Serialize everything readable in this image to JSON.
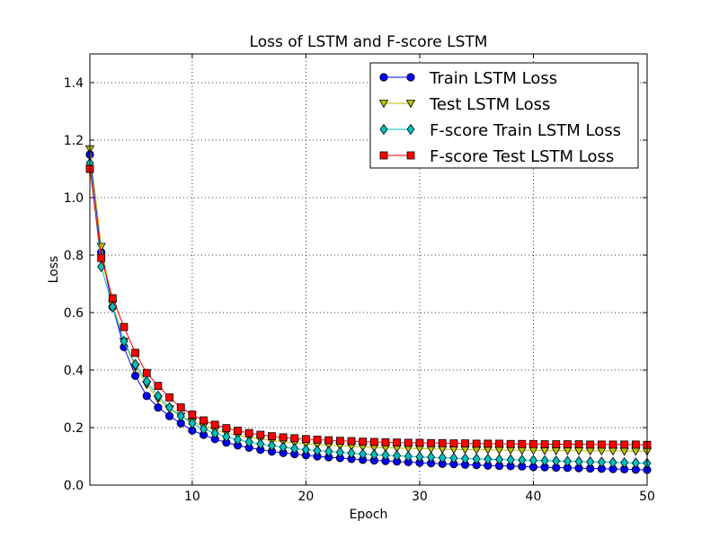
{
  "chart_data": {
    "type": "line",
    "title": "Loss of LSTM and F-score LSTM",
    "xlabel": "Epoch",
    "ylabel": "Loss",
    "xlim": [
      1,
      50
    ],
    "ylim": [
      0.0,
      1.5
    ],
    "xticks": [
      10,
      20,
      30,
      40,
      50
    ],
    "xtick_labels": [
      "10",
      "20",
      "30",
      "40",
      "50"
    ],
    "yticks": [
      0.0,
      0.2,
      0.4,
      0.6,
      0.8,
      1.0,
      1.2,
      1.4
    ],
    "ytick_labels": [
      "0.0",
      "0.2",
      "0.4",
      "0.6",
      "0.8",
      "1.0",
      "1.2",
      "1.4"
    ],
    "grid": true,
    "legend_position": "top-right",
    "x": [
      1,
      2,
      3,
      4,
      5,
      6,
      7,
      8,
      9,
      10,
      11,
      12,
      13,
      14,
      15,
      16,
      17,
      18,
      19,
      20,
      21,
      22,
      23,
      24,
      25,
      26,
      27,
      28,
      29,
      30,
      31,
      32,
      33,
      34,
      35,
      36,
      37,
      38,
      39,
      40,
      41,
      42,
      43,
      44,
      45,
      46,
      47,
      48,
      49,
      50
    ],
    "series": [
      {
        "name": "Train LSTM Loss",
        "color": "#0000ff",
        "marker": "circle",
        "values": [
          1.15,
          0.81,
          0.62,
          0.48,
          0.38,
          0.31,
          0.27,
          0.24,
          0.215,
          0.19,
          0.175,
          0.16,
          0.148,
          0.138,
          0.13,
          0.123,
          0.117,
          0.112,
          0.108,
          0.104,
          0.1,
          0.097,
          0.094,
          0.091,
          0.088,
          0.086,
          0.084,
          0.082,
          0.08,
          0.078,
          0.076,
          0.074,
          0.073,
          0.071,
          0.07,
          0.068,
          0.067,
          0.066,
          0.065,
          0.063,
          0.062,
          0.061,
          0.06,
          0.059,
          0.058,
          0.057,
          0.056,
          0.055,
          0.054,
          0.053
        ]
      },
      {
        "name": "Test LSTM Loss",
        "color": "#bfbf00",
        "marker": "triangle-down",
        "values": [
          1.17,
          0.83,
          0.63,
          0.5,
          0.41,
          0.35,
          0.3,
          0.265,
          0.24,
          0.22,
          0.205,
          0.192,
          0.182,
          0.173,
          0.166,
          0.16,
          0.155,
          0.151,
          0.147,
          0.144,
          0.141,
          0.139,
          0.137,
          0.135,
          0.133,
          0.131,
          0.13,
          0.129,
          0.128,
          0.127,
          0.126,
          0.125,
          0.124,
          0.124,
          0.123,
          0.123,
          0.122,
          0.122,
          0.121,
          0.121,
          0.12,
          0.12,
          0.12,
          0.119,
          0.119,
          0.119,
          0.119,
          0.118,
          0.118,
          0.118
        ]
      },
      {
        "name": "F-score Train LSTM Loss",
        "color": "#00bfbf",
        "marker": "diamond",
        "values": [
          1.12,
          0.76,
          0.62,
          0.5,
          0.42,
          0.36,
          0.31,
          0.27,
          0.24,
          0.215,
          0.195,
          0.18,
          0.168,
          0.158,
          0.15,
          0.143,
          0.137,
          0.132,
          0.127,
          0.123,
          0.12,
          0.117,
          0.114,
          0.111,
          0.108,
          0.106,
          0.104,
          0.102,
          0.1,
          0.098,
          0.097,
          0.095,
          0.094,
          0.092,
          0.091,
          0.09,
          0.089,
          0.088,
          0.087,
          0.086,
          0.085,
          0.084,
          0.083,
          0.082,
          0.081,
          0.08,
          0.079,
          0.078,
          0.077,
          0.076
        ]
      },
      {
        "name": "F-score Test LSTM Loss",
        "color": "#ff0000",
        "marker": "square",
        "values": [
          1.1,
          0.79,
          0.65,
          0.55,
          0.46,
          0.39,
          0.345,
          0.305,
          0.27,
          0.245,
          0.225,
          0.21,
          0.198,
          0.189,
          0.181,
          0.175,
          0.17,
          0.166,
          0.163,
          0.16,
          0.158,
          0.156,
          0.154,
          0.153,
          0.151,
          0.15,
          0.149,
          0.148,
          0.147,
          0.147,
          0.146,
          0.146,
          0.145,
          0.145,
          0.144,
          0.144,
          0.144,
          0.143,
          0.143,
          0.143,
          0.142,
          0.142,
          0.142,
          0.142,
          0.141,
          0.141,
          0.141,
          0.141,
          0.141,
          0.14
        ]
      }
    ]
  }
}
